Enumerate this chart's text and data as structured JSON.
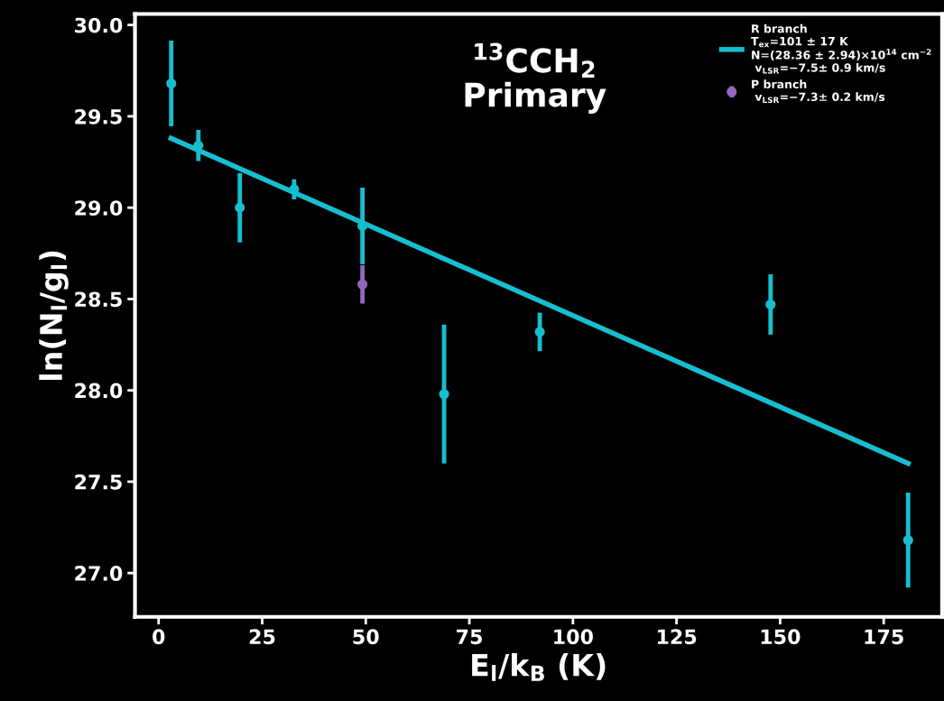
{
  "chart_data": {
    "type": "scatter",
    "title": "$^{13}$CCH$_{2}$\nPrimary",
    "xlabel": "E$_{l}$/k$_{B}$ (K)",
    "ylabel": "ln(N$_{l}$/g$_{l}$)",
    "xlim": [
      -5.7,
      189.1
    ],
    "ylim": [
      26.76,
      30.06
    ],
    "xticks": [
      0,
      25,
      50,
      75,
      100,
      125,
      150,
      175
    ],
    "yticks": [
      {
        "value": 27,
        "label": "27.0"
      },
      27.5,
      {
        "value": 28,
        "label": "28.0"
      },
      28.5,
      {
        "value": 29,
        "label": "29.0"
      },
      29.5,
      {
        "value": 30,
        "label": "30.0"
      }
    ],
    "grid": false,
    "legend": "top right",
    "marker": "circle",
    "series": [
      {
        "type": "line",
        "name": "R branch\nT$_{ex}$=101 ± 17 K\nN=(28.36 ± 2.94)×10$^{14}$ cm$^{−2}$\n v$_{LSR}$=−7.5± 0.9 km/s",
        "color": "#17becf",
        "x": [
          3.0,
          180.9
        ],
        "values": [
          29.38,
          27.6
        ],
        "marker": "none"
      },
      {
        "color": "#17becf",
        "x": [
          3.05,
          9.6,
          19.6,
          32.7,
          49.2,
          68.9,
          92.0,
          147.7,
          180.9
        ],
        "values": [
          29.68,
          29.34,
          29.0,
          29.1,
          28.9,
          27.98,
          28.32,
          28.47,
          27.18
        ],
        "errors": [
          0.235,
          0.085,
          0.19,
          0.055,
          0.21,
          0.38,
          0.105,
          0.165,
          0.26
        ]
      },
      {
        "name": "P branch\n v$_{LSR}$=−7.3± 0.2 km/s",
        "color": "#9467bd",
        "x": [
          49.2
        ],
        "values": [
          28.58
        ],
        "errors": [
          0.105
        ]
      }
    ]
  }
}
